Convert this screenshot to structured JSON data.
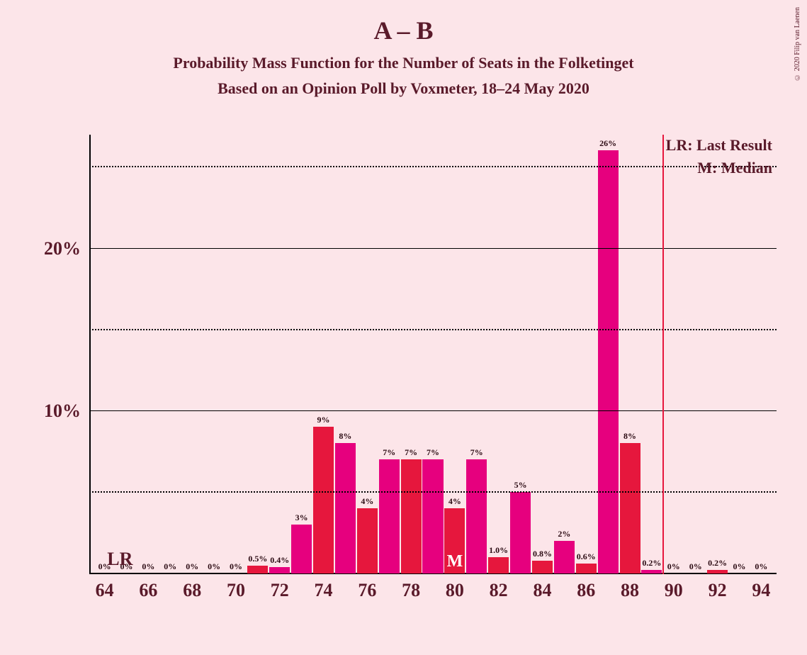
{
  "copyright": "© 2020 Filip van Laenen",
  "title": "A – B",
  "subtitle1": "Probability Mass Function for the Number of Seats in the Folketinget",
  "subtitle2": "Based on an Opinion Poll by Voxmeter, 18–24 May 2020",
  "legend": {
    "lr": "LR: Last Result",
    "m": "M: Median"
  },
  "chart": {
    "type": "bar",
    "background_color": "#fce5e9",
    "text_color": "#5a1a2a",
    "colors": {
      "pink": "#e6007e",
      "red": "#e6173d"
    },
    "y_axis": {
      "min": 0,
      "max": 27,
      "gridlines": [
        {
          "value": 5,
          "style": "dotted",
          "label": ""
        },
        {
          "value": 10,
          "style": "solid",
          "label": "10%"
        },
        {
          "value": 15,
          "style": "dotted",
          "label": ""
        },
        {
          "value": 20,
          "style": "solid",
          "label": "20%"
        },
        {
          "value": 25,
          "style": "dotted",
          "label": ""
        }
      ]
    },
    "x_axis": {
      "min": 63.3,
      "max": 94.7,
      "ticks": [
        64,
        66,
        68,
        70,
        72,
        74,
        76,
        78,
        80,
        82,
        84,
        86,
        88,
        90,
        92,
        94
      ]
    },
    "lr_marker": {
      "x": 64.7,
      "label": "LR"
    },
    "median_marker": {
      "x": 80,
      "label": "M"
    },
    "ref_line_x": 89.5,
    "bar_width": 0.94,
    "bars": [
      {
        "x": 64,
        "v": 0,
        "label": "0%",
        "color": "pink"
      },
      {
        "x": 65,
        "v": 0,
        "label": "0%",
        "color": "red"
      },
      {
        "x": 66,
        "v": 0,
        "label": "0%",
        "color": "pink"
      },
      {
        "x": 67,
        "v": 0,
        "label": "0%",
        "color": "red"
      },
      {
        "x": 68,
        "v": 0,
        "label": "0%",
        "color": "pink"
      },
      {
        "x": 69,
        "v": 0,
        "label": "0%",
        "color": "red"
      },
      {
        "x": 70,
        "v": 0,
        "label": "0%",
        "color": "pink"
      },
      {
        "x": 71,
        "v": 0.5,
        "label": "0.5%",
        "color": "red"
      },
      {
        "x": 72,
        "v": 0.4,
        "label": "0.4%",
        "color": "pink"
      },
      {
        "x": 73,
        "v": 3,
        "label": "3%",
        "color": "pink"
      },
      {
        "x": 74,
        "v": 9,
        "label": "9%",
        "color": "red"
      },
      {
        "x": 75,
        "v": 8,
        "label": "8%",
        "color": "pink"
      },
      {
        "x": 76,
        "v": 4,
        "label": "4%",
        "color": "red"
      },
      {
        "x": 77,
        "v": 7,
        "label": "7%",
        "color": "pink"
      },
      {
        "x": 78,
        "v": 7,
        "label": "7%",
        "color": "red"
      },
      {
        "x": 79,
        "v": 7,
        "label": "7%",
        "color": "pink"
      },
      {
        "x": 80,
        "v": 4,
        "label": "4%",
        "color": "red"
      },
      {
        "x": 81,
        "v": 7,
        "label": "7%",
        "color": "pink"
      },
      {
        "x": 82,
        "v": 1.0,
        "label": "1.0%",
        "color": "red"
      },
      {
        "x": 83,
        "v": 5,
        "label": "5%",
        "color": "pink"
      },
      {
        "x": 84,
        "v": 0.8,
        "label": "0.8%",
        "color": "red"
      },
      {
        "x": 85,
        "v": 2,
        "label": "2%",
        "color": "pink"
      },
      {
        "x": 86,
        "v": 0.6,
        "label": "0.6%",
        "color": "red"
      },
      {
        "x": 87,
        "v": 26,
        "label": "26%",
        "color": "pink"
      },
      {
        "x": 88,
        "v": 8,
        "label": "8%",
        "color": "red"
      },
      {
        "x": 89,
        "v": 0.2,
        "label": "0.2%",
        "color": "pink"
      },
      {
        "x": 90,
        "v": 0,
        "label": "0%",
        "color": "red"
      },
      {
        "x": 91,
        "v": 0,
        "label": "0%",
        "color": "pink"
      },
      {
        "x": 92,
        "v": 0.2,
        "label": "0.2%",
        "color": "red"
      },
      {
        "x": 93,
        "v": 0,
        "label": "0%",
        "color": "pink"
      },
      {
        "x": 94,
        "v": 0,
        "label": "0%",
        "color": "red"
      }
    ]
  }
}
